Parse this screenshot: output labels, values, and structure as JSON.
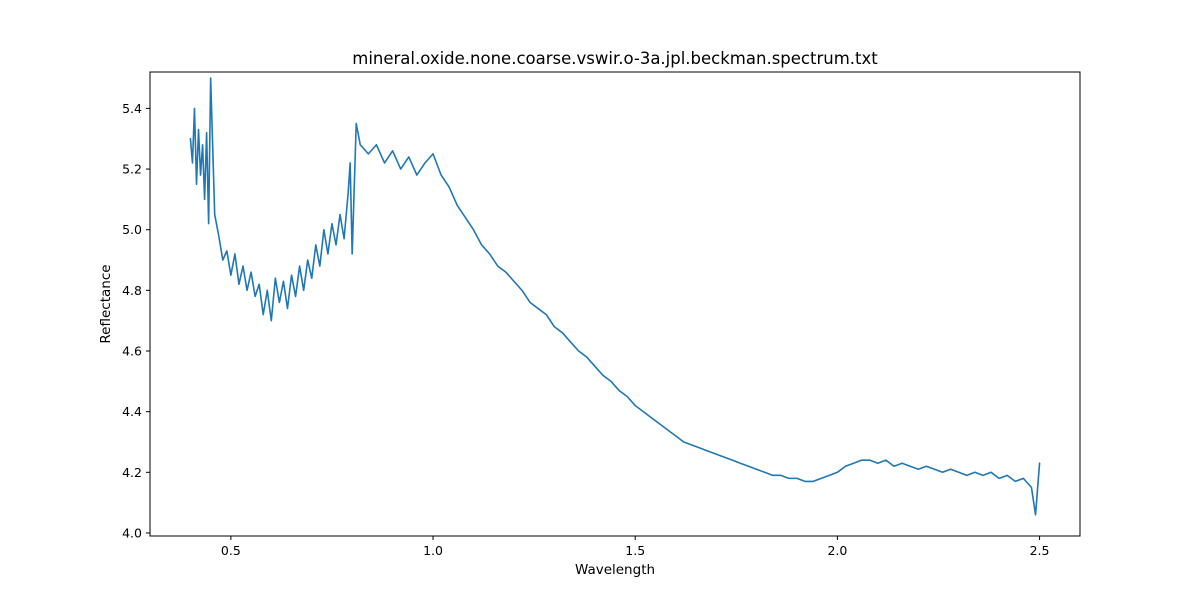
{
  "chart_data": {
    "type": "line",
    "title": "mineral.oxide.none.coarse.vswir.o-3a.jpl.beckman.spectrum.txt",
    "xlabel": "Wavelength",
    "ylabel": "Reflectance",
    "xlim": [
      0.3,
      2.6
    ],
    "ylim": [
      3.99,
      5.52
    ],
    "xticks": [
      0.5,
      1.0,
      1.5,
      2.0,
      2.5
    ],
    "xtick_labels": [
      "0.5",
      "1.0",
      "1.5",
      "2.0",
      "2.5"
    ],
    "yticks": [
      4.0,
      4.2,
      4.4,
      4.6,
      4.8,
      5.0,
      5.2,
      5.4
    ],
    "ytick_labels": [
      "4.0",
      "4.2",
      "4.4",
      "4.6",
      "4.8",
      "5.0",
      "5.2",
      "5.4"
    ],
    "grid": false,
    "legend": "none",
    "line_color": "#1f77b4",
    "series": [
      {
        "x": [
          0.4,
          0.405,
          0.41,
          0.415,
          0.42,
          0.425,
          0.43,
          0.435,
          0.44,
          0.445,
          0.45,
          0.46,
          0.47,
          0.48,
          0.49,
          0.5,
          0.51,
          0.52,
          0.53,
          0.54,
          0.55,
          0.56,
          0.57,
          0.58,
          0.59,
          0.6,
          0.61,
          0.62,
          0.63,
          0.64,
          0.65,
          0.66,
          0.67,
          0.68,
          0.69,
          0.7,
          0.71,
          0.72,
          0.73,
          0.74,
          0.75,
          0.76,
          0.77,
          0.78,
          0.79,
          0.795,
          0.8,
          0.81,
          0.82,
          0.84,
          0.86,
          0.88,
          0.9,
          0.92,
          0.94,
          0.96,
          0.98,
          1.0,
          1.02,
          1.04,
          1.06,
          1.08,
          1.1,
          1.12,
          1.14,
          1.16,
          1.18,
          1.2,
          1.22,
          1.24,
          1.26,
          1.28,
          1.3,
          1.32,
          1.34,
          1.36,
          1.38,
          1.4,
          1.42,
          1.44,
          1.46,
          1.48,
          1.5,
          1.52,
          1.54,
          1.56,
          1.58,
          1.6,
          1.62,
          1.64,
          1.66,
          1.68,
          1.7,
          1.72,
          1.74,
          1.76,
          1.78,
          1.8,
          1.82,
          1.84,
          1.86,
          1.88,
          1.9,
          1.92,
          1.94,
          1.96,
          1.98,
          2.0,
          2.02,
          2.04,
          2.06,
          2.08,
          2.1,
          2.12,
          2.14,
          2.16,
          2.18,
          2.2,
          2.22,
          2.24,
          2.26,
          2.28,
          2.3,
          2.32,
          2.34,
          2.36,
          2.38,
          2.4,
          2.42,
          2.44,
          2.46,
          2.48,
          2.49,
          2.5
        ],
        "y": [
          5.3,
          5.22,
          5.4,
          5.15,
          5.33,
          5.18,
          5.28,
          5.1,
          5.32,
          5.02,
          5.5,
          5.05,
          4.98,
          4.9,
          4.93,
          4.85,
          4.92,
          4.82,
          4.88,
          4.8,
          4.86,
          4.78,
          4.82,
          4.72,
          4.8,
          4.7,
          4.84,
          4.76,
          4.83,
          4.74,
          4.85,
          4.78,
          4.88,
          4.8,
          4.9,
          4.84,
          4.95,
          4.88,
          5.0,
          4.92,
          5.02,
          4.95,
          5.05,
          4.97,
          5.12,
          5.22,
          4.92,
          5.35,
          5.28,
          5.25,
          5.28,
          5.22,
          5.26,
          5.2,
          5.24,
          5.18,
          5.22,
          5.25,
          5.18,
          5.14,
          5.08,
          5.04,
          5.0,
          4.95,
          4.92,
          4.88,
          4.86,
          4.83,
          4.8,
          4.76,
          4.74,
          4.72,
          4.68,
          4.66,
          4.63,
          4.6,
          4.58,
          4.55,
          4.52,
          4.5,
          4.47,
          4.45,
          4.42,
          4.4,
          4.38,
          4.36,
          4.34,
          4.32,
          4.3,
          4.29,
          4.28,
          4.27,
          4.26,
          4.25,
          4.24,
          4.23,
          4.22,
          4.21,
          4.2,
          4.19,
          4.19,
          4.18,
          4.18,
          4.17,
          4.17,
          4.18,
          4.19,
          4.2,
          4.22,
          4.23,
          4.24,
          4.24,
          4.23,
          4.24,
          4.22,
          4.23,
          4.22,
          4.21,
          4.22,
          4.21,
          4.2,
          4.21,
          4.2,
          4.19,
          4.2,
          4.19,
          4.2,
          4.18,
          4.19,
          4.17,
          4.18,
          4.15,
          4.06,
          4.23
        ]
      }
    ]
  }
}
